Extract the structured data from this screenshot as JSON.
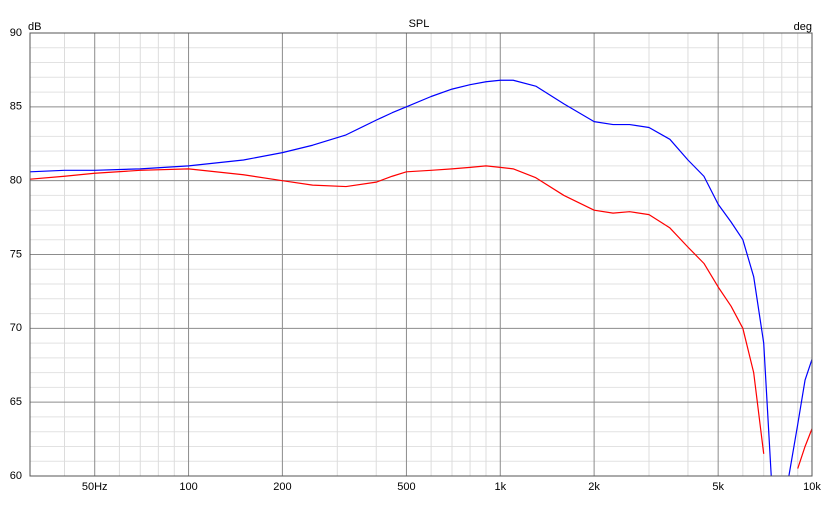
{
  "chart_data": {
    "type": "line",
    "title": "SPL",
    "ylabel": "dB",
    "y2label": "deg",
    "log_x": true,
    "grid": true,
    "xlim": [
      31,
      10000
    ],
    "ylim": [
      60,
      90
    ],
    "xticks": [
      {
        "value": 50,
        "label": "50Hz"
      },
      100,
      200,
      500,
      {
        "value": 1000,
        "label": "1k"
      },
      {
        "value": 2000,
        "label": "2k"
      },
      {
        "value": 5000,
        "label": "5k"
      },
      {
        "value": 10000,
        "label": "10k"
      }
    ],
    "x_minor_ticks": [
      40,
      60,
      70,
      80,
      90,
      300,
      400,
      600,
      700,
      800,
      900,
      3000,
      4000,
      6000,
      7000,
      8000,
      9000
    ],
    "yticks": [
      60,
      65,
      70,
      75,
      80,
      85,
      90
    ],
    "y_minor_ticks": [
      61,
      62,
      63,
      64,
      66,
      67,
      68,
      69,
      71,
      72,
      73,
      74,
      76,
      77,
      78,
      79,
      81,
      82,
      83,
      84,
      86,
      87,
      88,
      89
    ],
    "x": [
      31,
      40,
      50,
      70,
      100,
      150,
      200,
      250,
      320,
      400,
      450,
      500,
      600,
      700,
      800,
      900,
      1000,
      1100,
      1300,
      1600,
      2000,
      2300,
      2600,
      3000,
      3500,
      4000,
      4500,
      5000,
      5500,
      6000,
      6500,
      7000,
      7400,
      8000,
      8430,
      9000,
      9500,
      10000
    ],
    "series": [
      {
        "color": "#0000ff",
        "values": [
          80.6,
          80.7,
          80.7,
          80.8,
          81.0,
          81.4,
          81.9,
          82.4,
          83.1,
          84.1,
          84.6,
          85.0,
          85.7,
          86.2,
          86.5,
          86.7,
          86.8,
          86.8,
          86.4,
          85.2,
          84.0,
          83.8,
          83.8,
          83.6,
          82.8,
          81.4,
          80.3,
          78.4,
          77.2,
          76.0,
          73.5,
          69.0,
          60,
          null,
          60,
          63.5,
          66.5,
          67.9
        ]
      },
      {
        "color": "#ff0000",
        "values": [
          80.1,
          80.3,
          80.5,
          80.7,
          80.8,
          80.4,
          80.0,
          79.7,
          79.6,
          79.9,
          80.3,
          80.6,
          80.7,
          80.8,
          80.9,
          81.0,
          80.9,
          80.8,
          80.2,
          79.0,
          78.0,
          77.8,
          77.9,
          77.7,
          76.8,
          75.5,
          74.4,
          72.8,
          71.5,
          70.0,
          67.0,
          61.5,
          null,
          null,
          null,
          60.5,
          62.0,
          63.2
        ]
      }
    ]
  }
}
